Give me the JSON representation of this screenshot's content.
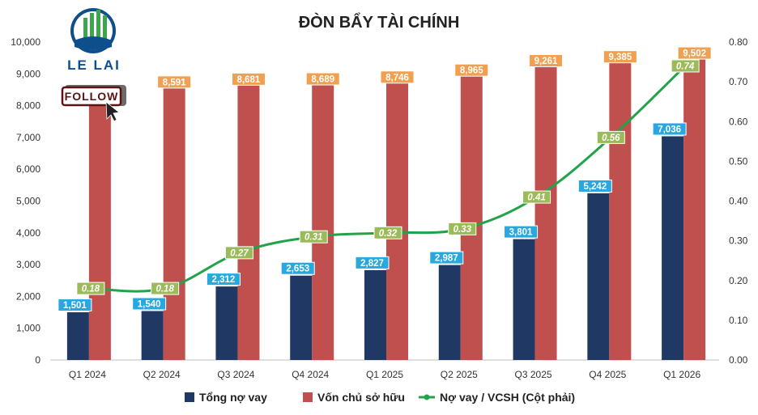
{
  "chart_data": {
    "type": "bar",
    "title": "ĐÒN BẨY TÀI CHÍNH",
    "categories": [
      "Q1 2024",
      "Q2 2024",
      "Q3 2024",
      "Q4 2024",
      "Q1 2025",
      "Q2 2025",
      "Q3 2025",
      "Q4 2025",
      "Q1 2026"
    ],
    "series": [
      {
        "name": "Tổng nợ vay",
        "type": "bar",
        "axis": "left",
        "color": "#1f3864",
        "values": [
          1501,
          1540,
          2312,
          2653,
          2827,
          2987,
          3801,
          5242,
          7036
        ],
        "labels": [
          "1,501",
          "1,540",
          "2,312",
          "2,653",
          "2,827",
          "2,987",
          "3,801",
          "5,242",
          "7,036"
        ]
      },
      {
        "name": "Vốn chủ sở hữu",
        "type": "bar",
        "axis": "left",
        "color": "#c0504d",
        "values": [
          8520,
          8591,
          8681,
          8689,
          8746,
          8965,
          9261,
          9385,
          9502
        ],
        "labels": [
          "",
          "8,591",
          "8,681",
          "8,689",
          "8,746",
          "8,965",
          "9,261",
          "9,385",
          "9,502"
        ]
      },
      {
        "name": "Nợ vay / VCSH (Cột phải)",
        "type": "line",
        "axis": "right",
        "color": "#22a34a",
        "values": [
          0.18,
          0.18,
          0.27,
          0.31,
          0.32,
          0.33,
          0.41,
          0.56,
          0.74
        ],
        "labels": [
          "0.18",
          "0.18",
          "0.27",
          "0.31",
          "0.32",
          "0.33",
          "0.41",
          "0.56",
          "0.74"
        ]
      }
    ],
    "y_left": {
      "min": 0,
      "max": 10000,
      "ticks": [
        "0",
        "1,000",
        "2,000",
        "3,000",
        "4,000",
        "5,000",
        "6,000",
        "7,000",
        "8,000",
        "9,000",
        "10,000"
      ]
    },
    "y_right": {
      "min": 0,
      "max": 0.8,
      "ticks": [
        "0.00",
        "0.10",
        "0.20",
        "0.30",
        "0.40",
        "0.50",
        "0.60",
        "0.70",
        "0.80"
      ]
    },
    "legend_position": "bottom",
    "grid": false
  },
  "logo": {
    "text": "LE LAI",
    "button": "FOLLOW"
  },
  "colors": {
    "debt_label_bg": "#29a8e0",
    "equity_label_bg": "#f0a050",
    "ratio_label_bg": "#9bbb59"
  }
}
